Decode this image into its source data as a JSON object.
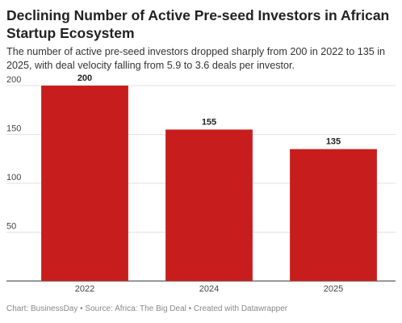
{
  "chart_data": {
    "type": "bar",
    "title": "Declining Number of Active Pre-seed Investors in African Startup Ecosystem",
    "subtitle": "The number of active pre-seed investors dropped sharply from 200 in 2022 to 135 in 2025, with deal velocity falling from 5.9 to 3.6 deals per investor.",
    "categories": [
      "2022",
      "2024",
      "2025"
    ],
    "values": [
      200,
      155,
      135
    ],
    "color": "#c71e1d",
    "ylim": [
      0,
      200
    ],
    "yticks": [
      50,
      100,
      150,
      200
    ],
    "grid": true,
    "footer": "Chart: BusinessDay • Source: Africa: The Big Deal • Created with Datawrapper"
  }
}
